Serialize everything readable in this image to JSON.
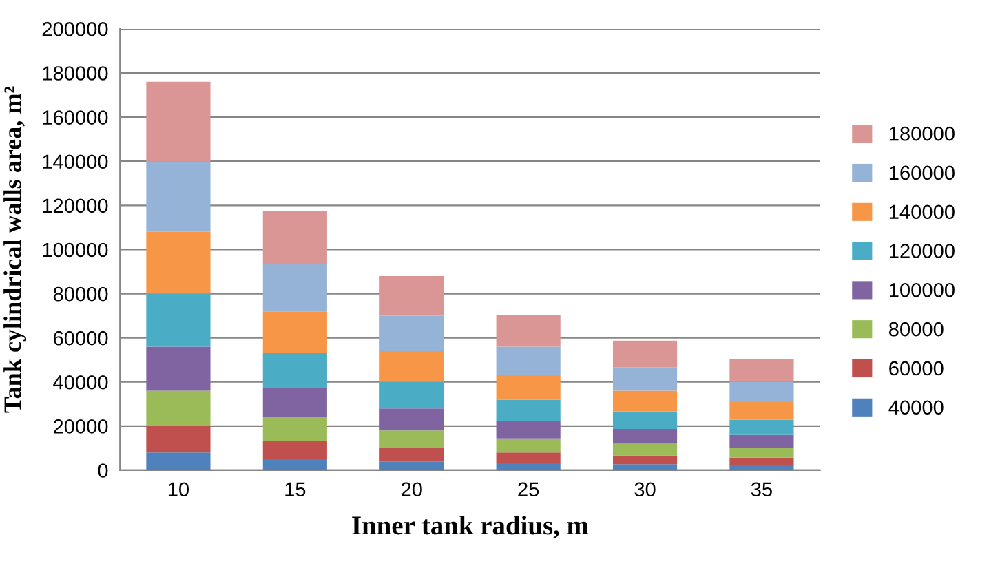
{
  "chart_data": {
    "type": "bar",
    "stacked": true,
    "xlabel": "Inner tank radius, m",
    "ylabel": "Tank cylindrical walls area, m²",
    "categories": [
      "10",
      "15",
      "20",
      "25",
      "30",
      "35"
    ],
    "series": [
      {
        "name": "40000",
        "color": "#4f81bd",
        "values": [
          8000,
          5300,
          4000,
          3200,
          2700,
          2300
        ]
      },
      {
        "name": "60000",
        "color": "#c0504d",
        "values": [
          12000,
          8000,
          6000,
          4800,
          4000,
          3400
        ]
      },
      {
        "name": "80000",
        "color": "#9bbb59",
        "values": [
          16000,
          10700,
          8000,
          6400,
          5300,
          4600
        ]
      },
      {
        "name": "100000",
        "color": "#8064a2",
        "values": [
          20000,
          13300,
          10000,
          8000,
          6700,
          5700
        ]
      },
      {
        "name": "120000",
        "color": "#4bacc6",
        "values": [
          24000,
          16000,
          12000,
          9600,
          8000,
          6900
        ]
      },
      {
        "name": "140000",
        "color": "#f79646",
        "values": [
          28000,
          18700,
          14000,
          11200,
          9300,
          8000
        ]
      },
      {
        "name": "160000",
        "color": "#95b3d7",
        "values": [
          32000,
          21300,
          16000,
          12800,
          10700,
          9100
        ]
      },
      {
        "name": "180000",
        "color": "#d99694",
        "values": [
          36000,
          24000,
          18000,
          14400,
          12000,
          10300
        ]
      }
    ],
    "ylim": [
      0,
      200000
    ],
    "yticks": [
      0,
      20000,
      40000,
      60000,
      80000,
      100000,
      120000,
      140000,
      160000,
      180000,
      200000
    ],
    "grid": "y",
    "legend": "right"
  }
}
